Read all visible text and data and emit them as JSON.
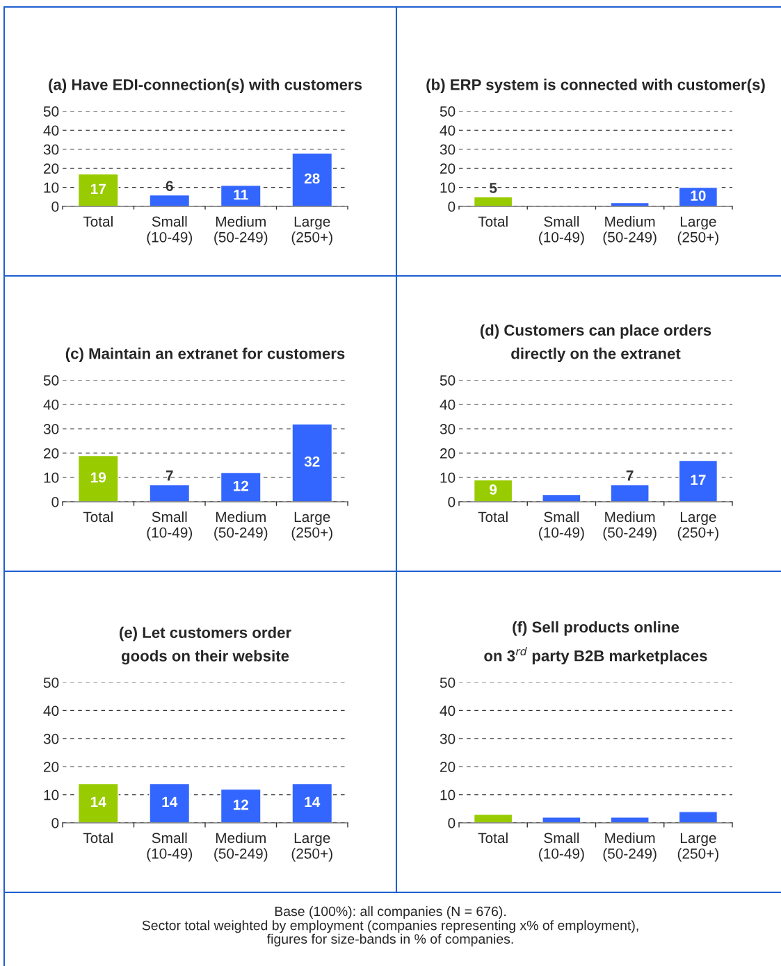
{
  "chart_data": [
    {
      "type": "bar",
      "title": "(a) Have EDI-connection(s) with customers",
      "categories": [
        "Total",
        "Small\n(10-49)",
        "Medium\n(50-249)",
        "Large\n(250+)"
      ],
      "values": [
        17,
        6,
        11,
        28
      ],
      "value_labels": [
        "17",
        "6",
        "11",
        "28"
      ],
      "colors": [
        "#99cc00",
        "#3366ff",
        "#3366ff",
        "#3366ff"
      ],
      "ylim": [
        0,
        50
      ],
      "yticks": [
        0,
        10,
        20,
        30,
        40,
        50
      ],
      "grid": "y"
    },
    {
      "type": "bar",
      "title": "(b) ERP system is connected with customer(s)",
      "categories": [
        "Total",
        "Small\n(10-49)",
        "Medium\n(50-249)",
        "Large\n(250+)"
      ],
      "values": [
        5,
        null,
        2,
        10
      ],
      "value_labels": [
        "5",
        null,
        null,
        "10"
      ],
      "colors": [
        "#99cc00",
        null,
        "#3366ff",
        "#3366ff"
      ],
      "ylim": [
        0,
        50
      ],
      "yticks": [
        0,
        10,
        20,
        30,
        40,
        50
      ],
      "grid": "y"
    },
    {
      "type": "bar",
      "title": "(c) Maintain an extranet for customers",
      "categories": [
        "Total",
        "Small\n(10-49)",
        "Medium\n(50-249)",
        "Large\n(250+)"
      ],
      "values": [
        19,
        7,
        12,
        32
      ],
      "value_labels": [
        "19",
        "7",
        "12",
        "32"
      ],
      "colors": [
        "#99cc00",
        "#3366ff",
        "#3366ff",
        "#3366ff"
      ],
      "ylim": [
        0,
        50
      ],
      "yticks": [
        0,
        10,
        20,
        30,
        40,
        50
      ],
      "grid": "y"
    },
    {
      "type": "bar",
      "title": "(d) Customers can place orders\ndirectly on the extranet",
      "categories": [
        "Total",
        "Small\n(10-49)",
        "Medium\n(50-249)",
        "Large\n(250+)"
      ],
      "values": [
        9,
        3,
        7,
        17
      ],
      "value_labels": [
        "9",
        null,
        "7",
        "17"
      ],
      "colors": [
        "#99cc00",
        "#3366ff",
        "#3366ff",
        "#3366ff"
      ],
      "ylim": [
        0,
        50
      ],
      "yticks": [
        0,
        10,
        20,
        30,
        40,
        50
      ],
      "grid": "y"
    },
    {
      "type": "bar",
      "title": "(e) Let customers order\ngoods on their website",
      "categories": [
        "Total",
        "Small\n(10-49)",
        "Medium\n(50-249)",
        "Large\n(250+)"
      ],
      "values": [
        14,
        14,
        12,
        14
      ],
      "value_labels": [
        "14",
        "14",
        "12",
        "14"
      ],
      "colors": [
        "#99cc00",
        "#3366ff",
        "#3366ff",
        "#3366ff"
      ],
      "ylim": [
        0,
        50
      ],
      "yticks": [
        0,
        10,
        20,
        30,
        40,
        50
      ],
      "grid": "y"
    },
    {
      "type": "bar",
      "title": "(f) Sell products online\non 3$^{rd}$ party B2B marketplaces",
      "categories": [
        "Total",
        "Small\n(10-49)",
        "Medium\n(50-249)",
        "Large\n(250+)"
      ],
      "values": [
        3,
        2,
        2,
        4
      ],
      "colors": [
        "#99cc00",
        "#3366ff",
        "#3366ff",
        "#3366ff"
      ],
      "ylim": [
        0,
        50
      ],
      "yticks": [
        0,
        10,
        20,
        30,
        40,
        50
      ],
      "grid": "y",
      "annotations": [
        "Base (100%): all companies (N = 676).",
        "Sector total weighted by employment (companies representing x% of employment),\nfigures for size-bands in % of companies."
      ]
    }
  ]
}
